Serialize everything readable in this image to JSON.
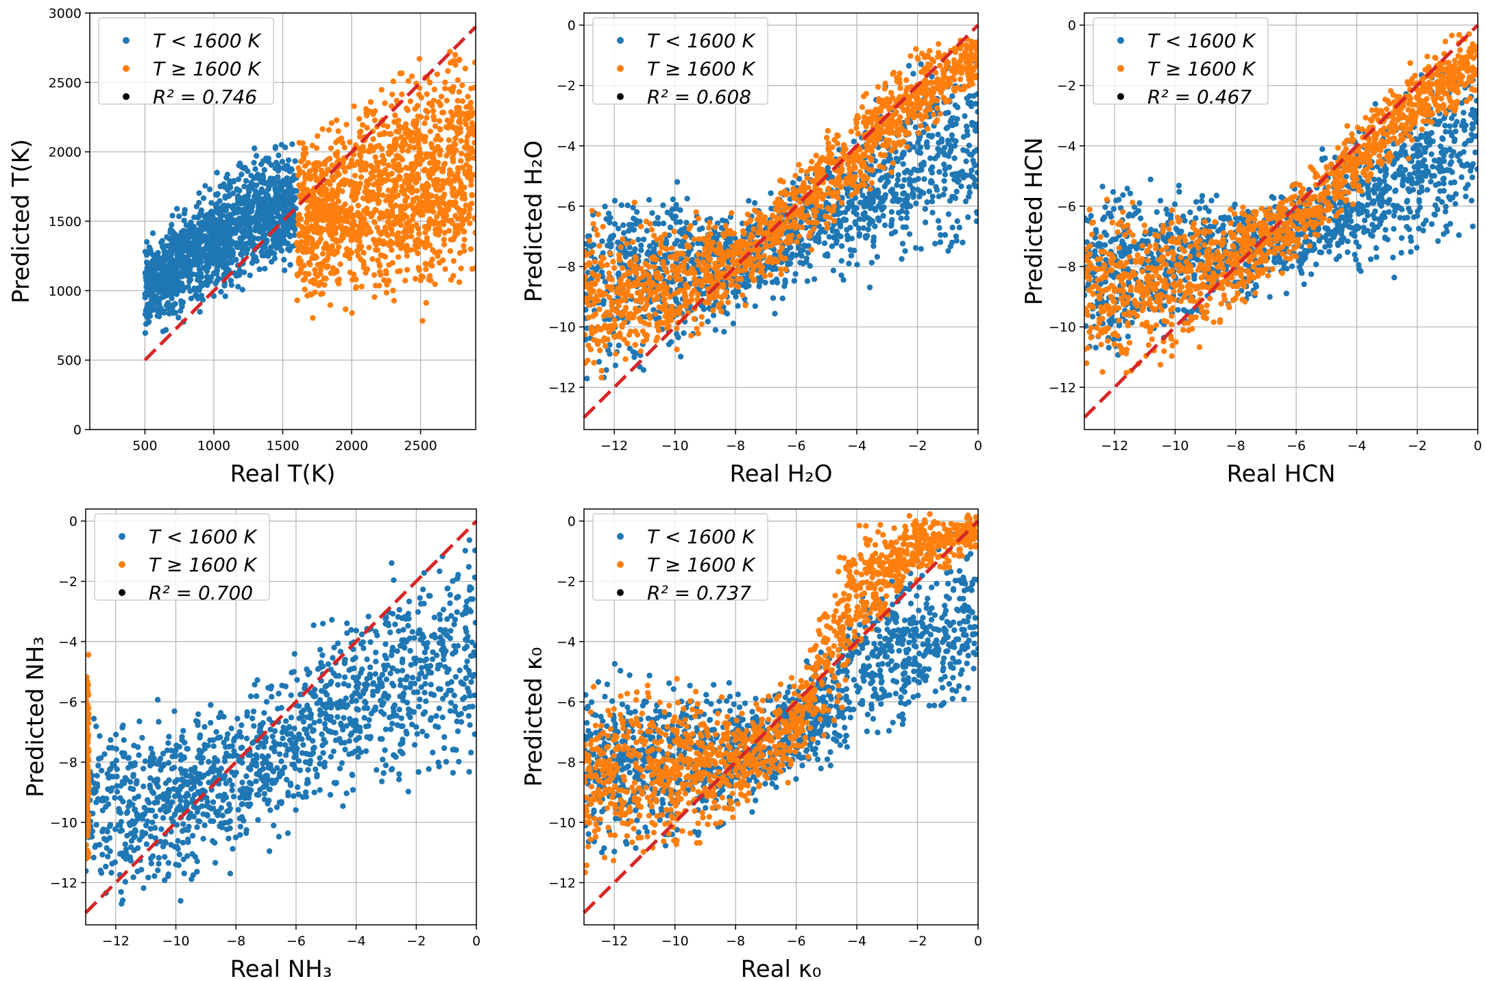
{
  "colors": {
    "low_temp": "#1f77b4",
    "high_temp": "#ff7f0e",
    "identity_line": "#d62728",
    "r2_marker": "#000000"
  },
  "legend": {
    "low_temp_label": "T < 1600 K",
    "high_temp_label": "T ≥ 1600 K"
  },
  "chart_data": [
    {
      "type": "scatter",
      "title": "",
      "xlabel": "Real T(K)",
      "ylabel": "Predicted T(K)",
      "xlim": [
        100,
        2900
      ],
      "ylim": [
        0,
        3000
      ],
      "xticks": [
        500,
        1000,
        1500,
        2000,
        2500
      ],
      "yticks": [
        0,
        500,
        1000,
        1500,
        2000,
        2500,
        3000
      ],
      "r2_label": "R² = 0.746",
      "r2": 0.746,
      "identity_line": [
        [
          500,
          500
        ],
        [
          2900,
          2900
        ]
      ],
      "grid": true,
      "legend_position": "upper-left",
      "series": [
        {
          "name": "T < 1600 K",
          "color_key": "low_temp",
          "x_range": [
            500,
            1600
          ],
          "cloud": [
            [
              500,
              650,
              1380
            ],
            [
              700,
              740,
              1520
            ],
            [
              900,
              850,
              1760
            ],
            [
              1100,
              950,
              1900
            ],
            [
              1300,
              1050,
              2000
            ],
            [
              1600,
              1200,
              2080
            ]
          ]
        },
        {
          "name": "T ≥ 1600 K",
          "color_key": "high_temp",
          "x_range": [
            1600,
            2900
          ],
          "cloud": [
            [
              1600,
              800,
              2100
            ],
            [
              1900,
              850,
              2350
            ],
            [
              2200,
              850,
              2550
            ],
            [
              2500,
              820,
              2700
            ],
            [
              2900,
              1100,
              2900
            ]
          ]
        }
      ]
    },
    {
      "type": "scatter",
      "title": "",
      "xlabel": "Real H₂O",
      "ylabel": "Predicted H₂O",
      "xlim": [
        -13,
        0
      ],
      "ylim": [
        -13.4,
        0.4
      ],
      "xticks": [
        -12,
        -10,
        -8,
        -6,
        -4,
        -2,
        0
      ],
      "yticks": [
        -12,
        -10,
        -8,
        -6,
        -4,
        -2,
        0
      ],
      "r2_label": "R² = 0.608",
      "r2": 0.608,
      "identity_line": [
        [
          -13,
          -13
        ],
        [
          0,
          0
        ]
      ],
      "grid": true,
      "legend_position": "upper-left",
      "series": [
        {
          "name": "T < 1600 K",
          "color_key": "low_temp",
          "x_range": [
            -13,
            0
          ],
          "cloud": [
            [
              -13,
              -12,
              -5
            ],
            [
              -10,
              -11,
              -5
            ],
            [
              -8,
              -10,
              -6
            ],
            [
              -6,
              -9,
              -5
            ],
            [
              -4,
              -8.5,
              -3
            ],
            [
              -2,
              -8,
              -1
            ],
            [
              0,
              -8,
              0
            ]
          ]
        },
        {
          "name": "T ≥ 1600 K",
          "color_key": "high_temp",
          "x_range": [
            -13,
            0
          ],
          "cloud": [
            [
              -13,
              -12,
              -6
            ],
            [
              -10,
              -11,
              -6.3
            ],
            [
              -8,
              -9.5,
              -6.2
            ],
            [
              -6,
              -8,
              -4.5
            ],
            [
              -4,
              -6,
              -2.5
            ],
            [
              -2,
              -4,
              -0.8
            ],
            [
              0,
              -2,
              0
            ]
          ]
        }
      ]
    },
    {
      "type": "scatter",
      "title": "",
      "xlabel": "Real HCN",
      "ylabel": "Predicted HCN",
      "xlim": [
        -13,
        0
      ],
      "ylim": [
        -13.4,
        0.4
      ],
      "xticks": [
        -12,
        -10,
        -8,
        -6,
        -4,
        -2,
        0
      ],
      "yticks": [
        -12,
        -10,
        -8,
        -6,
        -4,
        -2,
        0
      ],
      "r2_label": "R² = 0.467",
      "r2": 0.467,
      "identity_line": [
        [
          -13,
          -13
        ],
        [
          0,
          0
        ]
      ],
      "grid": true,
      "legend_position": "upper-left",
      "series": [
        {
          "name": "T < 1600 K",
          "color_key": "low_temp",
          "x_range": [
            -13,
            0
          ],
          "cloud": [
            [
              -13,
              -11.5,
              -5
            ],
            [
              -10,
              -10.5,
              -5.2
            ],
            [
              -8,
              -9.5,
              -5.5
            ],
            [
              -6,
              -9,
              -5
            ],
            [
              -4,
              -8.5,
              -3
            ],
            [
              -2,
              -8,
              -1.5
            ],
            [
              0,
              -7,
              -0.5
            ]
          ]
        },
        {
          "name": "T ≥ 1600 K",
          "color_key": "high_temp",
          "x_range": [
            -13,
            0
          ],
          "cloud": [
            [
              -13,
              -11.8,
              -5.5
            ],
            [
              -10,
              -11.5,
              -5.8
            ],
            [
              -8,
              -9.5,
              -6
            ],
            [
              -6,
              -8,
              -5
            ],
            [
              -4,
              -6,
              -3
            ],
            [
              -2,
              -4,
              -1
            ],
            [
              0,
              -2.5,
              0
            ]
          ]
        }
      ]
    },
    {
      "type": "scatter",
      "title": "",
      "xlabel": "Real NH₃",
      "ylabel": "Predicted NH₃",
      "xlim": [
        -13,
        0
      ],
      "ylim": [
        -13.4,
        0.4
      ],
      "xticks": [
        -12,
        -10,
        -8,
        -6,
        -4,
        -2,
        0
      ],
      "yticks": [
        -12,
        -10,
        -8,
        -6,
        -4,
        -2,
        0
      ],
      "r2_label": "R² = 0.700",
      "r2": 0.7,
      "identity_line": [
        [
          -13,
          -13
        ],
        [
          0,
          0
        ]
      ],
      "grid": true,
      "legend_position": "upper-left",
      "series": [
        {
          "name": "T < 1600 K",
          "color_key": "low_temp",
          "x_range": [
            -13,
            0
          ],
          "cloud": [
            [
              -13,
              -13,
              -6
            ],
            [
              -10,
              -12.5,
              -6
            ],
            [
              -8,
              -11.5,
              -5.5
            ],
            [
              -6,
              -10.5,
              -4
            ],
            [
              -4,
              -9.5,
              -2.5
            ],
            [
              -2,
              -9,
              -0.8
            ],
            [
              0,
              -9,
              0
            ]
          ]
        },
        {
          "name": "T ≥ 1600 K",
          "color_key": "high_temp",
          "x_range": [
            -13,
            -12.9
          ],
          "cloud": [
            [
              -13,
              -12,
              -4.5
            ],
            [
              -12.9,
              -12,
              -4.5
            ]
          ]
        }
      ]
    },
    {
      "type": "scatter",
      "title": "",
      "xlabel": "Real κ₀",
      "ylabel": "Predicted κ₀",
      "xlim": [
        -13,
        0
      ],
      "ylim": [
        -13.4,
        0.4
      ],
      "xticks": [
        -12,
        -10,
        -8,
        -6,
        -4,
        -2,
        0
      ],
      "yticks": [
        -12,
        -10,
        -8,
        -6,
        -4,
        -2,
        0
      ],
      "r2_label": "R² = 0.737",
      "r2": 0.737,
      "identity_line": [
        [
          -13,
          -13
        ],
        [
          0,
          0
        ]
      ],
      "grid": true,
      "legend_position": "upper-left",
      "series": [
        {
          "name": "T < 1600 K",
          "color_key": "low_temp",
          "x_range": [
            -13,
            0
          ],
          "cloud": [
            [
              -13,
              -11.5,
              -5
            ],
            [
              -10,
              -11,
              -5
            ],
            [
              -8,
              -10,
              -5.5
            ],
            [
              -6,
              -9,
              -5
            ],
            [
              -4,
              -8,
              -2
            ],
            [
              -2,
              -7,
              -1
            ],
            [
              0,
              -6,
              0
            ]
          ]
        },
        {
          "name": "T ≥ 1600 K",
          "color_key": "high_temp",
          "x_range": [
            -13,
            0
          ],
          "cloud": [
            [
              -13,
              -11.8,
              -5.5
            ],
            [
              -10,
              -11.3,
              -5.3
            ],
            [
              -8,
              -10,
              -6
            ],
            [
              -6,
              -8.5,
              -5
            ],
            [
              -4.7,
              -7,
              -1
            ],
            [
              -4,
              -5,
              0
            ],
            [
              -2,
              -2,
              0.4
            ],
            [
              0,
              -1,
              0.4
            ]
          ]
        }
      ]
    }
  ]
}
